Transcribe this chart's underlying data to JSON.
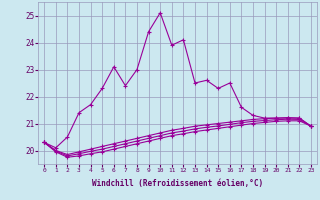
{
  "x": [
    0,
    1,
    2,
    3,
    4,
    5,
    6,
    7,
    8,
    9,
    10,
    11,
    12,
    13,
    14,
    15,
    16,
    17,
    18,
    19,
    20,
    21,
    22,
    23
  ],
  "line1": [
    20.3,
    20.1,
    20.5,
    21.4,
    21.7,
    22.3,
    23.1,
    22.4,
    23.0,
    24.4,
    25.1,
    23.9,
    24.1,
    22.5,
    22.6,
    22.3,
    22.5,
    21.6,
    21.3,
    21.2,
    21.2,
    21.2,
    21.2,
    20.9
  ],
  "line2": [
    20.3,
    20.0,
    19.85,
    19.95,
    20.05,
    20.15,
    20.25,
    20.35,
    20.45,
    20.55,
    20.65,
    20.75,
    20.82,
    20.9,
    20.95,
    21.0,
    21.05,
    21.1,
    21.15,
    21.18,
    21.2,
    21.22,
    21.2,
    20.9
  ],
  "line3": [
    20.3,
    19.95,
    19.75,
    19.8,
    19.88,
    19.95,
    20.05,
    20.15,
    20.25,
    20.35,
    20.45,
    20.55,
    20.62,
    20.7,
    20.76,
    20.82,
    20.88,
    20.94,
    21.0,
    21.04,
    21.08,
    21.1,
    21.1,
    20.9
  ],
  "line4": [
    20.3,
    19.98,
    19.8,
    19.88,
    19.97,
    20.05,
    20.15,
    20.25,
    20.35,
    20.45,
    20.55,
    20.65,
    20.72,
    20.8,
    20.86,
    20.91,
    20.97,
    21.03,
    21.08,
    21.11,
    21.14,
    21.16,
    21.15,
    20.9
  ],
  "ylim": [
    19.5,
    25.5
  ],
  "yticks": [
    20,
    21,
    22,
    23,
    24,
    25
  ],
  "xticks": [
    0,
    1,
    2,
    3,
    4,
    5,
    6,
    7,
    8,
    9,
    10,
    11,
    12,
    13,
    14,
    15,
    16,
    17,
    18,
    19,
    20,
    21,
    22,
    23
  ],
  "line_color": "#990099",
  "bg_color": "#cce8f0",
  "grid_color": "#9999bb",
  "xlabel": "Windchill (Refroidissement éolien,°C)",
  "xlabel_color": "#660066",
  "tick_color": "#660066",
  "marker": "+",
  "marker_size": 3,
  "marker_edge_width": 0.8,
  "line_width": 0.8
}
